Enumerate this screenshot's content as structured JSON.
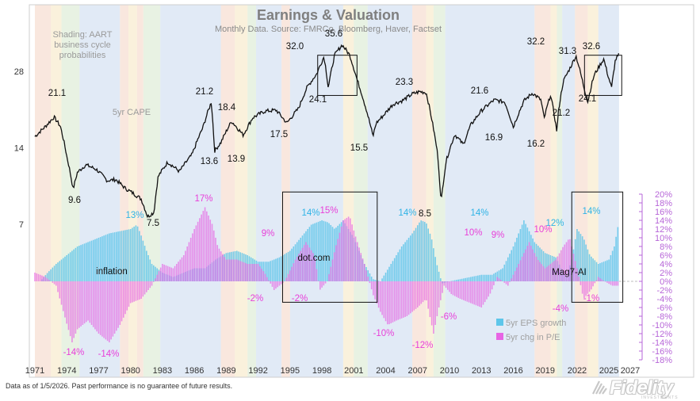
{
  "chart_data": {
    "type": "line",
    "title": "Earnings & Valuation",
    "subtitle": "Monthly Data. Source: FMRCo, Bloomberg, Haver, Factset",
    "shading_note": [
      "Shading: AART",
      "business cycle",
      "probabilities"
    ],
    "cape_label": "5yr CAPE",
    "x_ticks": [
      "1971",
      "1974",
      "1977",
      "1980",
      "1983",
      "1986",
      "1989",
      "1992",
      "1995",
      "1998",
      "2001",
      "2004",
      "2007",
      "2010",
      "2013",
      "2016",
      "2019",
      "2022",
      "2025",
      "2027"
    ],
    "xlim": [
      1970.5,
      2027.5
    ],
    "left_axis": {
      "scale": "log",
      "ticks": [
        "7",
        "14",
        "28"
      ],
      "tick_values": [
        7,
        14,
        28
      ]
    },
    "right_axis": {
      "ticks": [
        "20%",
        "18%",
        "16%",
        "14%",
        "12%",
        "10%",
        "8%",
        "6%",
        "4%",
        "2%",
        "0%",
        "-2%",
        "-4%",
        "-6%",
        "-8%",
        "-10%",
        "-12%",
        "-14%",
        "-16%",
        "-18%"
      ],
      "tick_values": [
        20,
        18,
        16,
        14,
        12,
        10,
        8,
        6,
        4,
        2,
        0,
        -2,
        -4,
        -6,
        -8,
        -10,
        -12,
        -14,
        -16,
        -18
      ],
      "ylim": [
        -18,
        20
      ]
    },
    "cape_series": {
      "name": "5yr CAPE",
      "x": [
        1971.0,
        1972.0,
        1972.8,
        1973.4,
        1974.0,
        1974.6,
        1975.0,
        1975.8,
        1976.8,
        1977.8,
        1978.6,
        1979.5,
        1980.2,
        1981.0,
        1981.6,
        1982.2,
        1982.6,
        1983.5,
        1984.6,
        1985.8,
        1986.8,
        1987.6,
        1987.9,
        1988.5,
        1989.5,
        1990.6,
        1991.5,
        1992.6,
        1993.7,
        1994.7,
        1995.8,
        1996.6,
        1997.5,
        1998.2,
        1998.6,
        1999.2,
        1999.9,
        2000.6,
        2001.3,
        2002.0,
        2002.8,
        2003.1,
        2003.8,
        2004.7,
        2005.6,
        2006.5,
        2007.2,
        2007.8,
        2008.4,
        2008.9,
        2009.2,
        2009.7,
        2010.5,
        2011.3,
        2012.0,
        2013.0,
        2014.2,
        2015.2,
        2016.0,
        2017.0,
        2017.8,
        2018.6,
        2018.9,
        2019.5,
        2020.1,
        2020.25,
        2020.7,
        2021.4,
        2021.9,
        2022.6,
        2023.0,
        2023.6,
        2024.5,
        2024.9,
        2025.25,
        2025.6,
        2025.95
      ],
      "y": [
        15.5,
        17,
        18.5,
        17,
        13,
        9.6,
        11.2,
        12,
        11.5,
        10.4,
        10.5,
        9.7,
        9.3,
        8.8,
        7.5,
        7.8,
        10.8,
        12.3,
        11.3,
        13.2,
        16.8,
        21.2,
        13.6,
        14.7,
        17.8,
        15.7,
        18.4,
        19.5,
        19.7,
        17.5,
        20,
        24.2,
        27.3,
        32.0,
        24.1,
        32.5,
        35.6,
        32.5,
        26,
        21,
        15.5,
        17.5,
        18.8,
        20.8,
        21.5,
        22.8,
        23.3,
        23.1,
        17.5,
        13,
        8.5,
        12.5,
        15.8,
        14.4,
        17.2,
        19.6,
        21.6,
        21.2,
        16.9,
        21.4,
        23,
        21.6,
        18.2,
        22.6,
        16.2,
        19.5,
        25.5,
        29.2,
        32.2,
        24.6,
        21.2,
        27,
        31.3,
        27,
        24.1,
        31,
        32.6
      ]
    },
    "eps_series": {
      "name": "5yr EPS growth",
      "color": "#5ec6ea",
      "x": [
        1971.0,
        1971.5,
        1972.2,
        1973.0,
        1974.0,
        1975.0,
        1976.0,
        1977.0,
        1978.0,
        1979.0,
        1980.0,
        1980.6,
        1981.0,
        1981.5,
        1982.0,
        1983.0,
        1984.0,
        1985.0,
        1986.0,
        1987.0,
        1988.0,
        1989.0,
        1990.0,
        1991.0,
        1992.0,
        1993.0,
        1994.0,
        1995.0,
        1996.0,
        1997.0,
        1998.0,
        1998.6,
        1999.2,
        2000.0,
        2001.0,
        2002.0,
        2002.8,
        2003.5,
        2004.5,
        2005.5,
        2006.5,
        2007.3,
        2007.8,
        2008.3,
        2008.8,
        2009.3,
        2010.0,
        2011.0,
        2012.0,
        2013.0,
        2014.0,
        2015.0,
        2016.0,
        2017.0,
        2018.0,
        2019.0,
        2020.0,
        2020.5,
        2021.0,
        2021.5,
        2022.0,
        2022.6,
        2023.2,
        2024.0,
        2025.0,
        2025.5,
        2025.95
      ],
      "y": [
        0,
        0,
        2,
        4,
        6,
        8,
        9,
        10,
        11,
        11.5,
        12,
        13,
        10.5,
        7,
        4,
        2,
        1,
        2,
        3,
        3,
        5,
        6.5,
        7,
        6,
        4.5,
        4.5,
        5.5,
        7,
        10,
        13,
        14,
        13.5,
        12,
        14,
        10,
        4,
        0.5,
        0,
        4,
        8,
        11,
        14,
        13.5,
        10,
        4,
        -0.5,
        0,
        0.5,
        1,
        1.5,
        1.5,
        3,
        8,
        14,
        9,
        6.5,
        5.5,
        3,
        1,
        5,
        12,
        10,
        6,
        4,
        5,
        8,
        14
      ]
    },
    "pe_series": {
      "name": "5yr chg in P/E",
      "color": "#e765e4",
      "x": [
        1971.0,
        1972.0,
        1973.0,
        1973.8,
        1974.5,
        1975.0,
        1976.0,
        1977.0,
        1978.0,
        1979.0,
        1980.0,
        1981.0,
        1982.0,
        1983.0,
        1984.0,
        1985.0,
        1986.0,
        1987.0,
        1987.7,
        1988.2,
        1989.0,
        1990.0,
        1991.0,
        1992.0,
        1992.6,
        1993.5,
        1994.5,
        1995.5,
        1996.5,
        1997.3,
        1997.8,
        1998.5,
        1999.3,
        2000.0,
        2000.6,
        2001.2,
        2002.0,
        2002.8,
        2003.5,
        2004.2,
        2005.0,
        2006.0,
        2007.0,
        2007.8,
        2008.5,
        2009.0,
        2009.5,
        2010.2,
        2011.0,
        2012.0,
        2013.0,
        2013.8,
        2014.5,
        2015.5,
        2016.5,
        2017.5,
        2018.3,
        2019.0,
        2020.0,
        2020.7,
        2021.3,
        2022.0,
        2022.6,
        2023.3,
        2024.0,
        2024.6,
        2025.3,
        2025.95
      ],
      "y": [
        2,
        1,
        -1,
        -8,
        -14,
        -11,
        -9,
        -12,
        -14,
        -10,
        -5,
        -4,
        -1,
        4,
        3,
        6,
        12,
        17,
        13,
        8,
        5,
        5,
        4,
        4,
        2,
        -2,
        0,
        5,
        9,
        6,
        -2,
        0,
        8,
        14,
        15,
        10,
        4,
        -3,
        -7,
        -10,
        -9,
        -8,
        -6,
        -4,
        -12,
        -6,
        -1,
        -3,
        -4,
        -5,
        -6,
        -3,
        1,
        -1,
        4,
        9,
        5,
        3,
        5,
        8,
        10,
        3,
        -4,
        -2,
        1,
        0,
        -1,
        -1
      ]
    },
    "labels": {
      "cape_peaks": [
        "21.1",
        "9.6",
        "7.5",
        "21.2",
        "13.6",
        "18.4",
        "13.9",
        "17.5",
        "32.0",
        "35.6",
        "24.1",
        "15.5",
        "23.3",
        "8.5",
        "21.6",
        "16.9",
        "16.2",
        "32.2",
        "31.3",
        "21.2",
        "32.6",
        "24.1"
      ],
      "eps_peaks": [
        "13%",
        "14%",
        "14%",
        "14%",
        "12%",
        "14%"
      ],
      "pe_peaks": [
        "17%",
        "9%",
        "15%",
        "-2%",
        "-2%",
        "10%",
        "9%",
        "10%",
        "-4%",
        "-1%",
        "-14%",
        "-14%",
        "-10%",
        "-12%",
        "-6%"
      ]
    },
    "eras": [
      "inflation",
      "dot.com",
      "Mag7-AI"
    ],
    "legend": {
      "placement": "bottom-right",
      "entries": [
        "5yr EPS growth",
        "5yr chg in P/E"
      ]
    },
    "shading_colors": {
      "expansion": "#c8d9ee",
      "late_cycle": "#f4d4c3",
      "slowdown": "#f5e6bf",
      "recession": "#d6e8cc"
    },
    "shading_bands": [
      {
        "from": 1971.0,
        "to": 1972.5,
        "phase": "late_cycle"
      },
      {
        "from": 1972.5,
        "to": 1973.5,
        "phase": "slowdown"
      },
      {
        "from": 1973.5,
        "to": 1975.2,
        "phase": "recession"
      },
      {
        "from": 1975.2,
        "to": 1979.0,
        "phase": "expansion"
      },
      {
        "from": 1979.0,
        "to": 1979.8,
        "phase": "late_cycle"
      },
      {
        "from": 1979.8,
        "to": 1980.6,
        "phase": "slowdown"
      },
      {
        "from": 1980.6,
        "to": 1981.2,
        "phase": "late_cycle"
      },
      {
        "from": 1981.2,
        "to": 1982.8,
        "phase": "recession"
      },
      {
        "from": 1982.8,
        "to": 1988.5,
        "phase": "expansion"
      },
      {
        "from": 1988.5,
        "to": 1989.8,
        "phase": "late_cycle"
      },
      {
        "from": 1989.8,
        "to": 1991.0,
        "phase": "slowdown"
      },
      {
        "from": 1991.0,
        "to": 1991.8,
        "phase": "recession"
      },
      {
        "from": 1991.8,
        "to": 1994.2,
        "phase": "expansion"
      },
      {
        "from": 1994.2,
        "to": 1995.0,
        "phase": "late_cycle"
      },
      {
        "from": 1995.0,
        "to": 2000.0,
        "phase": "expansion"
      },
      {
        "from": 2000.0,
        "to": 2001.0,
        "phase": "slowdown"
      },
      {
        "from": 2001.0,
        "to": 2002.3,
        "phase": "recession"
      },
      {
        "from": 2002.3,
        "to": 2006.5,
        "phase": "expansion"
      },
      {
        "from": 2006.5,
        "to": 2007.8,
        "phase": "late_cycle"
      },
      {
        "from": 2007.8,
        "to": 2008.5,
        "phase": "slowdown"
      },
      {
        "from": 2008.5,
        "to": 2009.6,
        "phase": "recession"
      },
      {
        "from": 2009.6,
        "to": 2018.0,
        "phase": "expansion"
      },
      {
        "from": 2018.0,
        "to": 2019.5,
        "phase": "late_cycle"
      },
      {
        "from": 2019.5,
        "to": 2020.1,
        "phase": "slowdown"
      },
      {
        "from": 2020.1,
        "to": 2020.6,
        "phase": "recession"
      },
      {
        "from": 2020.6,
        "to": 2021.8,
        "phase": "expansion"
      },
      {
        "from": 2021.8,
        "to": 2023.0,
        "phase": "late_cycle"
      },
      {
        "from": 2023.0,
        "to": 2024.0,
        "phase": "slowdown"
      },
      {
        "from": 2024.0,
        "to": 2025.95,
        "phase": "expansion"
      }
    ],
    "highlight_boxes": [
      {
        "from_year": 1997.6,
        "to_year": 2001.3,
        "panel": "cape"
      },
      {
        "from_year": 1994.3,
        "to_year": 2003.2,
        "panel": "growth"
      },
      {
        "from_year": 2021.5,
        "to_year": 2026.3,
        "panel": "growth"
      },
      {
        "from_year": 2022.7,
        "to_year": 2026.2,
        "panel": "cape"
      }
    ]
  },
  "footer": {
    "disclaimer": "Data as of 1/5/2026. Past performance is no guarantee of future results.",
    "logo": "Fidelity",
    "logo_sub": "INVESTMENTS"
  }
}
